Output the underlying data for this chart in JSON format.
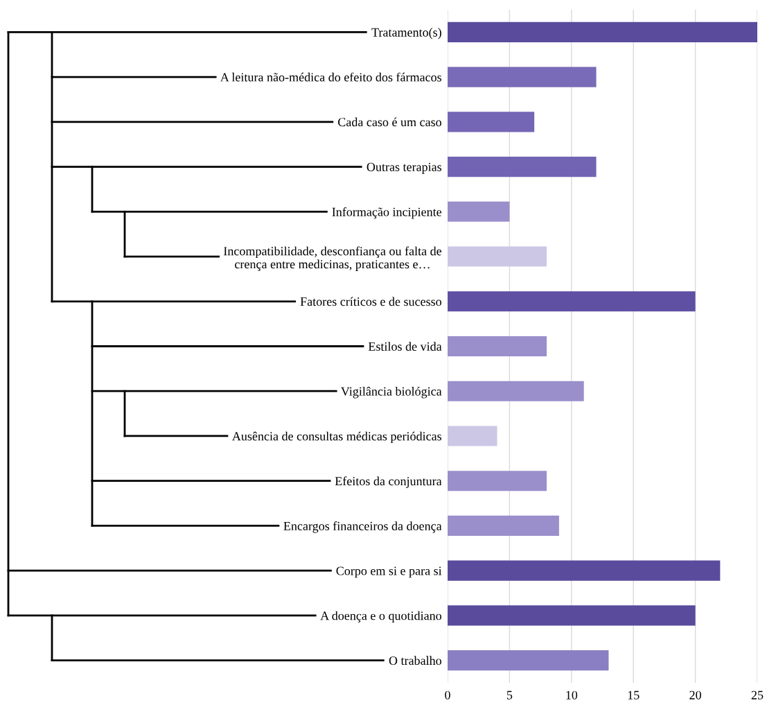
{
  "chart_data": {
    "type": "bar",
    "orientation": "horizontal",
    "categories": [
      "Tratamento(s)",
      "A leitura não-médica do efeito dos fármacos",
      "Cada caso é um caso",
      "Outras terapias",
      "Informação incipiente",
      "Incompatibilidade, desconfiança ou falta de\ncrença entre medicinas, praticantes e…",
      "Fatores críticos e de sucesso",
      "Estilos de vida",
      "Vigilância biológica",
      "Ausência de consultas médicas periódicas",
      "Efeitos da conjuntura",
      "Encargos financeiros da doença",
      "Corpo em si e para si",
      "A doença e o quotidiano",
      "O trabalho"
    ],
    "values": [
      25,
      12,
      7,
      12,
      5,
      8,
      20,
      8,
      11,
      4,
      8,
      9,
      22,
      20,
      13
    ],
    "colors": [
      "#5a4b9c",
      "#7a6bb8",
      "#7566b5",
      "#7264b3",
      "#9a8fcb",
      "#cdc7e6",
      "#5f50a3",
      "#9a8fcb",
      "#9a8fcb",
      "#cdc7e6",
      "#9a8fcb",
      "#9a8fcb",
      "#5a4b9c",
      "#5a4b9c",
      "#8a7fc2"
    ],
    "xlim": [
      0,
      25
    ],
    "xticks": [
      0,
      5,
      10,
      15,
      20,
      25
    ],
    "grid": "x"
  }
}
